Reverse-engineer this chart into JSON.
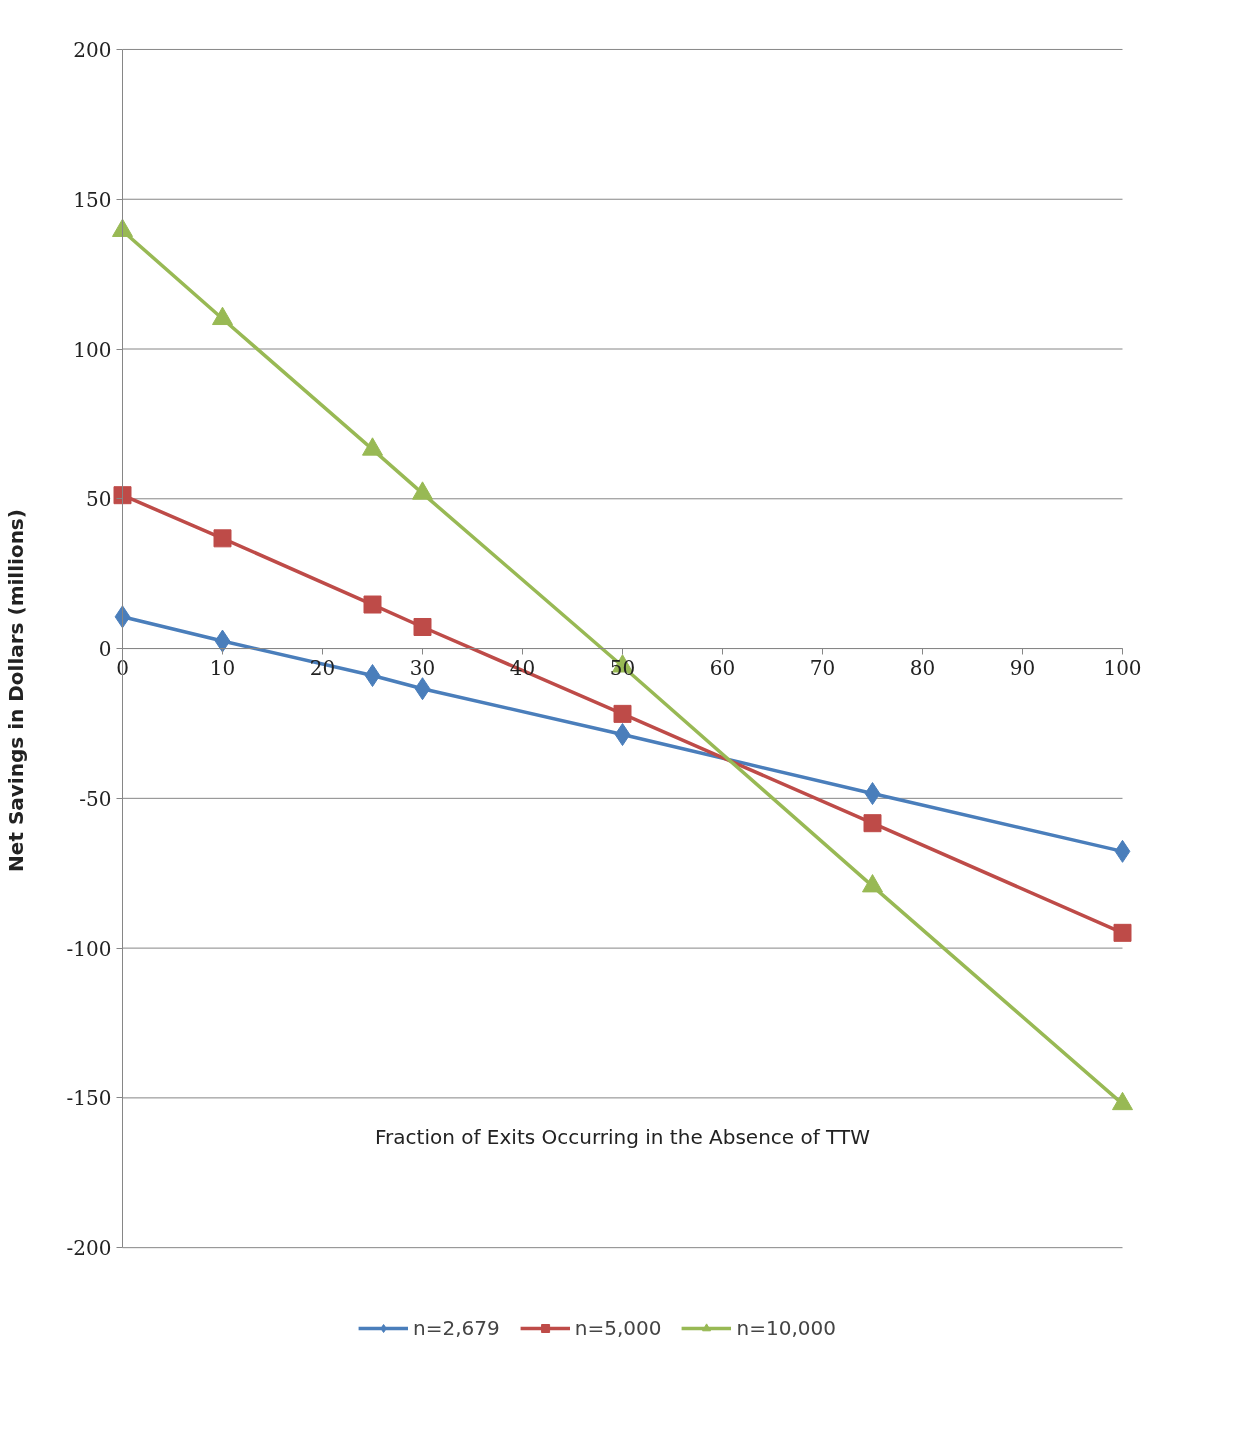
{
  "chart_data": {
    "type": "line",
    "xlabel": "Fraction of Exits Occurring in the Absence of TTW",
    "ylabel": "Net Savings in Dollars (millions)",
    "x": [
      0,
      10,
      25,
      30,
      50,
      75,
      100
    ],
    "series": [
      {
        "name": "n=2,679",
        "color": "#4a7ebb",
        "marker": "diamond",
        "values": [
          10.6,
          2.5,
          -9,
          -13.4,
          -28.7,
          -48.4,
          -67.7
        ]
      },
      {
        "name": "n=5,000",
        "color": "#be4b48",
        "marker": "square",
        "values": [
          51.2,
          36.8,
          14.7,
          7.2,
          -21.8,
          -58.3,
          -94.9
        ]
      },
      {
        "name": "n=10,000",
        "color": "#98b954",
        "marker": "triangle",
        "values": [
          139.5,
          110.1,
          66.5,
          51.8,
          -5.9,
          -79.3,
          -152
        ]
      }
    ],
    "xlim": [
      0,
      100
    ],
    "xticks": [
      0,
      10,
      20,
      30,
      40,
      50,
      60,
      70,
      80,
      90,
      100
    ],
    "ylim": [
      -200,
      200
    ],
    "yticks": [
      -200,
      -150,
      -100,
      -50,
      0,
      50,
      100,
      150,
      200
    ],
    "grid": "y",
    "legend": "bottom",
    "line_style": "solid"
  }
}
